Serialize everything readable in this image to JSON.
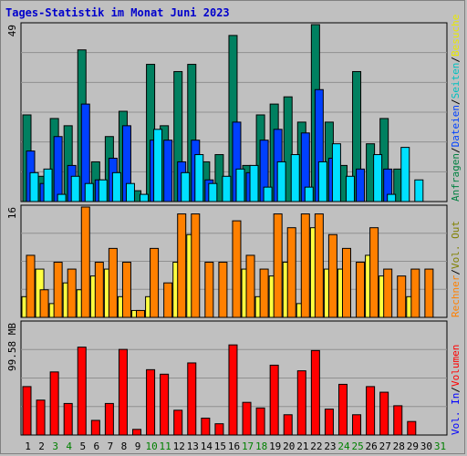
{
  "title": "Tages-Statistik im Monat Juni 2023",
  "chart_data": [
    {
      "type": "bar",
      "panel": "top",
      "ymax_label": "49",
      "ylim": [
        0,
        49
      ],
      "grid": true,
      "legend_right": [
        {
          "text": "Anfragen",
          "color": "#008040"
        },
        {
          "text": "/",
          "color": "#000000"
        },
        {
          "text": "Dateien",
          "color": "#0040ff"
        },
        {
          "text": "/",
          "color": "#000000"
        },
        {
          "text": "Seiten",
          "color": "#00c0c0"
        },
        {
          "text": "/",
          "color": "#000000"
        },
        {
          "text": "Besuche",
          "color": "#e8e800"
        }
      ],
      "series": [
        {
          "name": "Anfragen",
          "color": "#008060",
          "values": [
            24,
            7,
            23,
            21,
            42,
            11,
            18,
            25,
            3,
            38,
            21,
            36,
            38,
            11,
            13,
            46,
            10,
            24,
            27,
            29,
            22,
            49,
            22,
            10,
            36,
            16,
            23,
            9,
            0,
            0
          ]
        },
        {
          "name": "Dateien",
          "color": "#0040ff",
          "values": [
            14,
            5,
            18,
            10,
            27,
            6,
            12,
            21,
            0,
            17,
            17,
            11,
            17,
            6,
            0,
            22,
            8,
            17,
            20,
            0,
            19,
            31,
            12,
            0,
            9,
            0,
            9,
            0,
            0,
            0
          ]
        },
        {
          "name": "Seiten",
          "color": "#00e0ff",
          "values": [
            8,
            9,
            2,
            7,
            5,
            6,
            8,
            5,
            2,
            20,
            0,
            8,
            13,
            5,
            7,
            9,
            10,
            4,
            11,
            13,
            4,
            11,
            16,
            7,
            0,
            13,
            2,
            15,
            6,
            0
          ]
        }
      ]
    },
    {
      "type": "bar",
      "panel": "middle",
      "ymax_label": "16",
      "ylim": [
        0,
        16
      ],
      "grid": true,
      "legend_right": [
        {
          "text": "Rechner",
          "color": "#ff8000"
        },
        {
          "text": "/",
          "color": "#000000"
        },
        {
          "text": "Vol. Out",
          "color": "#808000"
        }
      ],
      "series": [
        {
          "name": "Besuche",
          "color": "#ffff40",
          "values": [
            3,
            7,
            2,
            5,
            4,
            6,
            7,
            3,
            1,
            3,
            0,
            8,
            12,
            0,
            0,
            0,
            7,
            3,
            6,
            8,
            2,
            13,
            7,
            7,
            0,
            9,
            6,
            0,
            3,
            0
          ]
        },
        {
          "name": "Rechner",
          "color": "#ff8000",
          "values": [
            9,
            4,
            8,
            7,
            16,
            8,
            10,
            8,
            1,
            10,
            5,
            15,
            15,
            8,
            8,
            14,
            9,
            7,
            15,
            13,
            15,
            15,
            12,
            10,
            8,
            13,
            7,
            6,
            7,
            7
          ]
        }
      ]
    },
    {
      "type": "bar",
      "panel": "bottom",
      "ymax_label": "99.58 MB",
      "ylim": [
        0,
        99.58
      ],
      "grid": true,
      "legend_right": [
        {
          "text": "Vol. In",
          "color": "#0000ff"
        },
        {
          "text": "/",
          "color": "#000000"
        },
        {
          "text": "Volumen",
          "color": "#ff0000"
        }
      ],
      "series": [
        {
          "name": "Volumen",
          "color": "#ff0000",
          "values": [
            43,
            31,
            56,
            28,
            78,
            13,
            28,
            76,
            5,
            58,
            54,
            22,
            64,
            15,
            10,
            80,
            29,
            24,
            62,
            18,
            57,
            75,
            23,
            45,
            18,
            43,
            38,
            26,
            12,
            0
          ]
        }
      ]
    }
  ],
  "x_labels": [
    "1",
    "2",
    "3",
    "4",
    "5",
    "6",
    "7",
    "8",
    "9",
    "10",
    "11",
    "12",
    "13",
    "14",
    "15",
    "16",
    "17",
    "18",
    "19",
    "20",
    "21",
    "22",
    "23",
    "24",
    "25",
    "26",
    "27",
    "28",
    "29",
    "30",
    "31"
  ],
  "weekend_days": [
    3,
    4,
    10,
    11,
    17,
    18,
    24,
    25,
    31
  ],
  "colors": {
    "weekday": "#000000",
    "weekend": "#008000",
    "title": "#0000cc"
  }
}
